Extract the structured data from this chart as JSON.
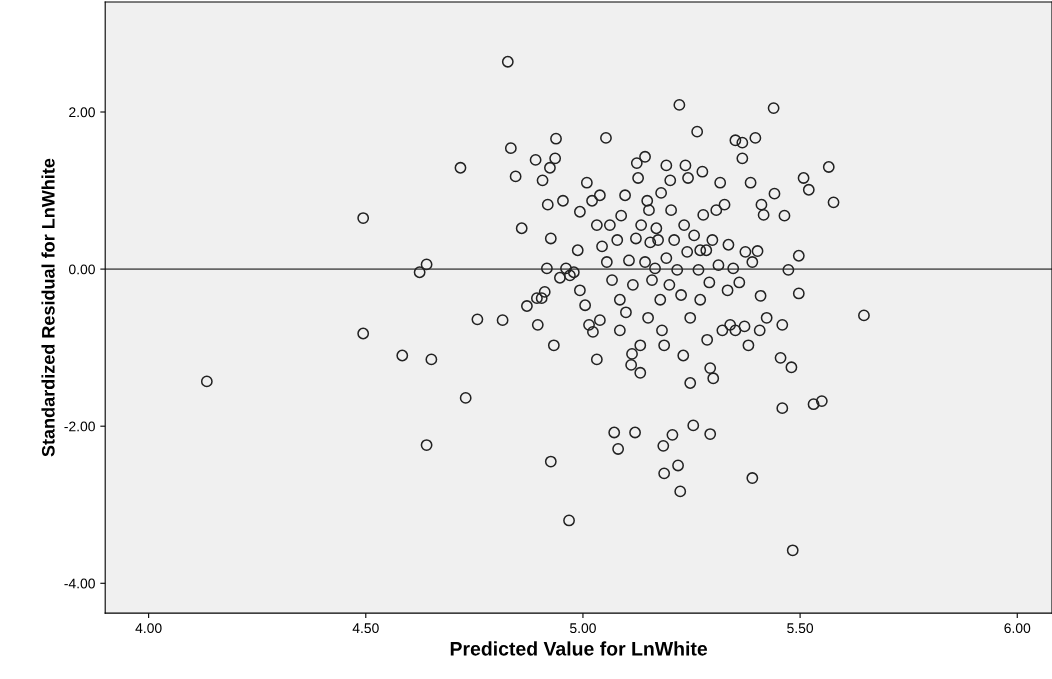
{
  "chart_data": {
    "type": "scatter",
    "xlabel": "Predicted Value for LnWhite",
    "ylabel": "Standardized Residual for LnWhite",
    "xlim": [
      3.9,
      6.08
    ],
    "ylim": [
      -4.38,
      3.4
    ],
    "xticks": [
      {
        "value": 4,
        "label": "4.00"
      },
      {
        "value": 4.5,
        "label": "4.50"
      },
      {
        "value": 5,
        "label": "5.00"
      },
      {
        "value": 5.5,
        "label": "5.50"
      },
      {
        "value": 6,
        "label": "6.00"
      }
    ],
    "yticks": [
      {
        "value": -4,
        "label": "-4.00"
      },
      {
        "value": -2,
        "label": "-2.00"
      },
      {
        "value": 0,
        "label": "0.00"
      },
      {
        "value": 2,
        "label": "2.00"
      }
    ],
    "grid": false,
    "legend": false,
    "marker": "circle",
    "ref_lines": [
      {
        "axis": "y",
        "value": 0,
        "label": null,
        "color": "#666666",
        "line_style": "solid"
      }
    ],
    "series": [
      {
        "color": "#222222",
        "x": [
          4.134,
          4.494,
          4.494,
          4.584,
          4.624,
          4.64,
          4.651,
          4.64,
          4.718,
          4.73,
          4.757,
          4.815,
          4.827,
          4.834,
          4.845,
          4.859,
          4.871,
          4.894,
          4.896,
          4.905,
          4.912,
          4.891,
          4.907,
          4.924,
          4.938,
          4.936,
          4.919,
          4.926,
          4.917,
          4.926,
          4.933,
          4.954,
          4.961,
          4.979,
          4.968,
          4.988,
          4.993,
          5.005,
          5.014,
          5.023,
          5.032,
          5.039,
          5.053,
          5.062,
          5.072,
          5.081,
          5.085,
          5.099,
          5.111,
          5.113,
          5.12,
          5.122,
          5.124,
          5.127,
          5.132,
          5.132,
          5.143,
          5.148,
          5.155,
          5.166,
          5.178,
          5.182,
          5.187,
          5.185,
          5.187,
          5.192,
          5.201,
          5.206,
          5.222,
          5.219,
          5.224,
          5.231,
          5.236,
          5.242,
          5.247,
          5.254,
          5.263,
          5.27,
          5.275,
          5.286,
          5.293,
          5.293,
          5.3,
          5.307,
          5.316,
          5.321,
          5.333,
          5.339,
          5.351,
          5.367,
          5.367,
          5.386,
          5.39,
          5.381,
          5.397,
          5.402,
          5.411,
          5.416,
          5.409,
          5.423,
          5.439,
          5.441,
          5.455,
          5.459,
          5.464,
          5.459,
          5.473,
          5.48,
          5.483,
          5.497,
          5.497,
          5.508,
          5.52,
          5.531,
          5.55,
          5.566,
          5.577,
          5.647,
          5.009,
          5.021,
          5.032,
          5.044,
          5.055,
          5.067,
          5.079,
          5.088,
          5.097,
          5.106,
          5.115,
          5.134,
          5.143,
          5.152,
          5.159,
          5.169,
          5.173,
          5.18,
          5.192,
          5.199,
          5.203,
          5.21,
          5.217,
          5.226,
          5.233,
          5.24,
          5.247,
          5.256,
          5.266,
          5.277,
          5.284,
          5.291,
          5.298,
          5.312,
          5.326,
          5.335,
          5.346,
          5.36,
          5.374,
          5.39,
          5.407,
          5.372,
          5.351,
          5.085,
          5.039,
          4.993,
          4.97,
          4.947,
          5.15,
          5.27
        ],
        "values": [
          -1.43,
          0.65,
          -0.82,
          -1.1,
          -0.04,
          0.06,
          -1.15,
          -2.24,
          1.29,
          -1.64,
          -0.64,
          -0.65,
          2.64,
          1.54,
          1.18,
          0.52,
          -0.47,
          -0.37,
          -0.71,
          -0.37,
          -0.29,
          1.39,
          1.13,
          1.29,
          1.66,
          1.41,
          0.82,
          0.39,
          0.01,
          -2.45,
          -0.97,
          0.87,
          0.01,
          -0.04,
          -3.2,
          0.24,
          0.73,
          -0.46,
          -0.71,
          -0.8,
          -1.15,
          0.94,
          1.67,
          0.56,
          -2.08,
          -2.29,
          -0.78,
          -0.55,
          -1.22,
          -1.08,
          -2.08,
          0.39,
          1.35,
          1.16,
          -0.97,
          -1.32,
          1.43,
          0.87,
          0.34,
          0.01,
          -0.39,
          -0.78,
          -0.97,
          -2.25,
          -2.6,
          1.32,
          1.13,
          -2.11,
          2.09,
          -2.5,
          -2.83,
          -1.1,
          1.32,
          1.16,
          -1.45,
          -1.99,
          1.75,
          -0.39,
          1.24,
          -0.9,
          -1.26,
          -2.1,
          -1.39,
          0.75,
          1.1,
          -0.78,
          -0.27,
          -0.71,
          1.64,
          1.61,
          1.41,
          1.1,
          -2.66,
          -0.97,
          1.67,
          0.23,
          0.82,
          0.69,
          -0.34,
          -0.62,
          2.05,
          0.96,
          -1.13,
          -1.77,
          0.68,
          -0.71,
          -0.01,
          -1.25,
          -3.58,
          0.17,
          -0.31,
          1.16,
          1.01,
          -1.72,
          -1.68,
          1.3,
          0.85,
          -0.59,
          1.1,
          0.87,
          0.56,
          0.29,
          0.09,
          -0.14,
          0.37,
          0.68,
          0.94,
          0.11,
          -0.2,
          0.56,
          0.09,
          0.75,
          -0.14,
          0.52,
          0.37,
          0.97,
          0.14,
          -0.2,
          0.75,
          0.37,
          -0.01,
          -0.33,
          0.56,
          0.22,
          -0.62,
          0.43,
          -0.01,
          0.69,
          0.24,
          -0.17,
          0.37,
          0.05,
          0.82,
          0.31,
          0.01,
          -0.17,
          0.22,
          0.09,
          -0.78,
          -0.73,
          -0.78,
          -0.39,
          -0.65,
          -0.27,
          -0.08,
          -0.11,
          -0.62,
          0.24
        ]
      }
    ]
  }
}
